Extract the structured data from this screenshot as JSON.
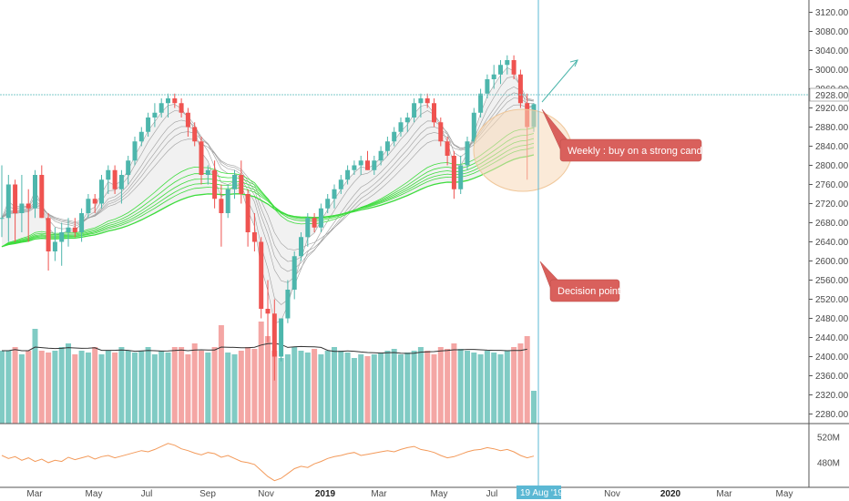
{
  "chart_data": {
    "type": "candlestick",
    "colors": {
      "up": "#4db6ac",
      "down": "#ef5350",
      "volume_up": "#80cbc4",
      "volume_down": "#f4a6a4",
      "ribbon_fast": "#9e9e9e",
      "ribbon_slow": "#3ddc3d",
      "osc": "#f39a5a",
      "vol_ma": "#333333",
      "note_bg": "#d9605c",
      "ellipse": "#f8d9b8",
      "vline": "#5bb8d4",
      "price_line": "#7ec8c8"
    },
    "price_axis": {
      "ylim": [
        2260,
        3140
      ],
      "ticks": [
        "2280.00",
        "2320.00",
        "2360.00",
        "2400.00",
        "2440.00",
        "2480.00",
        "2520.00",
        "2560.00",
        "2600.00",
        "2640.00",
        "2680.00",
        "2720.00",
        "2760.00",
        "2800.00",
        "2840.00",
        "2880.00",
        "2920.00",
        "2960.00",
        "3000.00",
        "3040.00",
        "3080.00",
        "3120.00"
      ],
      "current_price": "2928.00",
      "current_value": 2928
    },
    "volume_axis": {
      "ticks": [
        "520M",
        "480M"
      ]
    },
    "time_axis": {
      "labels": [
        "Mar",
        "May",
        "Jul",
        "Sep",
        "Nov",
        "2019",
        "Mar",
        "May",
        "Jul",
        "Nov",
        "2020",
        "Mar",
        "May"
      ],
      "bold": [
        "2019",
        "2020"
      ],
      "marker": "19 Aug '19"
    },
    "candles": [
      [
        2690,
        2800,
        2650,
        2690
      ],
      [
        2690,
        2780,
        2640,
        2760
      ],
      [
        2760,
        2770,
        2640,
        2700
      ],
      [
        2700,
        2780,
        2660,
        2720
      ],
      [
        2720,
        2750,
        2640,
        2710
      ],
      [
        2710,
        2790,
        2690,
        2780
      ],
      [
        2780,
        2800,
        2690,
        2690
      ],
      [
        2690,
        2700,
        2580,
        2620
      ],
      [
        2620,
        2670,
        2600,
        2640
      ],
      [
        2640,
        2680,
        2590,
        2660
      ],
      [
        2660,
        2690,
        2630,
        2670
      ],
      [
        2670,
        2690,
        2650,
        2660
      ],
      [
        2660,
        2710,
        2640,
        2700
      ],
      [
        2700,
        2740,
        2690,
        2730
      ],
      [
        2730,
        2740,
        2700,
        2720
      ],
      [
        2720,
        2780,
        2710,
        2770
      ],
      [
        2770,
        2800,
        2740,
        2790
      ],
      [
        2790,
        2800,
        2740,
        2750
      ],
      [
        2750,
        2790,
        2720,
        2780
      ],
      [
        2780,
        2820,
        2760,
        2810
      ],
      [
        2810,
        2860,
        2800,
        2850
      ],
      [
        2850,
        2880,
        2840,
        2870
      ],
      [
        2870,
        2910,
        2860,
        2900
      ],
      [
        2900,
        2930,
        2880,
        2910
      ],
      [
        2910,
        2940,
        2900,
        2930
      ],
      [
        2930,
        2950,
        2900,
        2940
      ],
      [
        2940,
        2950,
        2920,
        2930
      ],
      [
        2930,
        2940,
        2900,
        2910
      ],
      [
        2910,
        2920,
        2860,
        2880
      ],
      [
        2880,
        2890,
        2840,
        2850
      ],
      [
        2850,
        2860,
        2760,
        2780
      ],
      [
        2780,
        2800,
        2760,
        2790
      ],
      [
        2790,
        2810,
        2710,
        2730
      ],
      [
        2730,
        2760,
        2630,
        2700
      ],
      [
        2700,
        2760,
        2690,
        2750
      ],
      [
        2750,
        2790,
        2730,
        2780
      ],
      [
        2780,
        2810,
        2720,
        2740
      ],
      [
        2740,
        2750,
        2630,
        2660
      ],
      [
        2660,
        2700,
        2620,
        2640
      ],
      [
        2640,
        2650,
        2480,
        2500
      ],
      [
        2500,
        2560,
        2430,
        2490
      ],
      [
        2490,
        2520,
        2350,
        2400
      ],
      [
        2400,
        2480,
        2390,
        2480
      ],
      [
        2480,
        2560,
        2470,
        2540
      ],
      [
        2540,
        2620,
        2520,
        2610
      ],
      [
        2610,
        2660,
        2600,
        2650
      ],
      [
        2650,
        2700,
        2630,
        2690
      ],
      [
        2690,
        2700,
        2660,
        2670
      ],
      [
        2670,
        2720,
        2660,
        2710
      ],
      [
        2710,
        2740,
        2700,
        2730
      ],
      [
        2730,
        2760,
        2710,
        2750
      ],
      [
        2750,
        2780,
        2740,
        2770
      ],
      [
        2770,
        2800,
        2760,
        2790
      ],
      [
        2790,
        2810,
        2780,
        2800
      ],
      [
        2800,
        2820,
        2780,
        2810
      ],
      [
        2810,
        2830,
        2790,
        2790
      ],
      [
        2790,
        2820,
        2780,
        2810
      ],
      [
        2810,
        2840,
        2800,
        2830
      ],
      [
        2830,
        2860,
        2820,
        2850
      ],
      [
        2850,
        2880,
        2840,
        2870
      ],
      [
        2870,
        2900,
        2860,
        2890
      ],
      [
        2890,
        2910,
        2870,
        2900
      ],
      [
        2900,
        2940,
        2890,
        2930
      ],
      [
        2930,
        2950,
        2900,
        2940
      ],
      [
        2940,
        2950,
        2920,
        2930
      ],
      [
        2930,
        2940,
        2880,
        2890
      ],
      [
        2890,
        2900,
        2840,
        2850
      ],
      [
        2850,
        2860,
        2800,
        2820
      ],
      [
        2820,
        2830,
        2730,
        2750
      ],
      [
        2750,
        2820,
        2740,
        2800
      ],
      [
        2800,
        2860,
        2790,
        2850
      ],
      [
        2850,
        2920,
        2840,
        2910
      ],
      [
        2910,
        2960,
        2900,
        2950
      ],
      [
        2950,
        2990,
        2940,
        2980
      ],
      [
        2980,
        3010,
        2960,
        2990
      ],
      [
        2990,
        3020,
        2970,
        3010
      ],
      [
        3010,
        3030,
        2990,
        3020
      ],
      [
        3020,
        3030,
        2980,
        2990
      ],
      [
        2990,
        3000,
        2920,
        2930
      ],
      [
        2930,
        2950,
        2770,
        2880
      ],
      [
        2880,
        2930,
        2870,
        2928
      ]
    ],
    "volume": [
      2000,
      2000,
      2100,
      1900,
      2000,
      2600,
      2000,
      1950,
      2000,
      2100,
      2200,
      1900,
      2000,
      1950,
      2100,
      1900,
      2000,
      1950,
      2100,
      2000,
      1950,
      2000,
      2100,
      1900,
      2000,
      1950,
      2100,
      2100,
      1900,
      2200,
      2000,
      1950,
      2100,
      2700,
      1950,
      1900,
      2000,
      2100,
      2050,
      2800,
      2400,
      2000,
      1800,
      1900,
      2100,
      2000,
      1950,
      2050,
      1900,
      2000,
      2100,
      2000,
      1950,
      1800,
      1900,
      1850,
      1900,
      1950,
      2000,
      2050,
      1900,
      1950,
      2000,
      2100,
      2000,
      1900,
      2100,
      2050,
      2200,
      2050,
      2000,
      1950,
      1900,
      2000,
      1950,
      1900,
      2000,
      2100,
      2200,
      2400,
      900
    ],
    "rsi_series": [
      490,
      485,
      488,
      482,
      486,
      480,
      484,
      478,
      482,
      480,
      487,
      483,
      486,
      489,
      484,
      488,
      490,
      486,
      489,
      492,
      495,
      498,
      496,
      500,
      505,
      510,
      507,
      501,
      498,
      494,
      491,
      495,
      493,
      487,
      490,
      485,
      480,
      478,
      475,
      465,
      455,
      448,
      452,
      460,
      468,
      472,
      470,
      476,
      480,
      485,
      488,
      490,
      493,
      495,
      490,
      492,
      494,
      496,
      498,
      496,
      500,
      503,
      505,
      500,
      498,
      495,
      490,
      486,
      488,
      492,
      496,
      499,
      500,
      503,
      501,
      498,
      500,
      496,
      490,
      486,
      489
    ],
    "annotations": {
      "weekly_note": "Weekly : buy on a strong candle",
      "decision_note": "Decision point"
    }
  }
}
